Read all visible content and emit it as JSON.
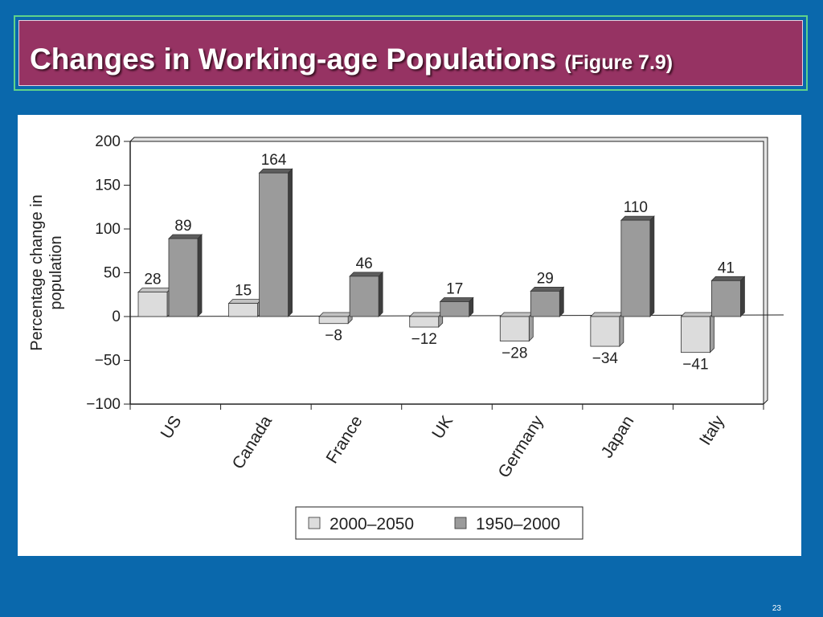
{
  "slide": {
    "title": "Changes in Working-age Populations",
    "title_suffix": "(Figure 7.9)",
    "number": "23",
    "background_color": "#0a68ac",
    "banner_color": "#963363"
  },
  "chart_data": {
    "type": "bar",
    "title": "",
    "ylabel": "Percentage change in population",
    "xlabel": "",
    "ylim": [
      -100,
      200
    ],
    "yticks": [
      200,
      150,
      100,
      50,
      0,
      -50,
      -100
    ],
    "ytick_labels": [
      "200",
      "150",
      "100",
      "50",
      "0",
      "−50",
      "−100"
    ],
    "categories": [
      "US",
      "Canada",
      "France",
      "UK",
      "Germany",
      "Japan",
      "Italy"
    ],
    "series": [
      {
        "name": "2000–2050",
        "color": "#dcdcdc",
        "values": [
          28,
          15,
          -8,
          -12,
          -28,
          -34,
          -41
        ],
        "labels": [
          "28",
          "15",
          "−8",
          "−12",
          "−28",
          "−34",
          "−41"
        ]
      },
      {
        "name": "1950–2000",
        "color": "#9b9b9b",
        "values": [
          89,
          164,
          46,
          17,
          29,
          110,
          41
        ],
        "labels": [
          "89",
          "164",
          "46",
          "17",
          "29",
          "110",
          "41"
        ]
      }
    ],
    "legend_position": "bottom",
    "grid": false
  }
}
